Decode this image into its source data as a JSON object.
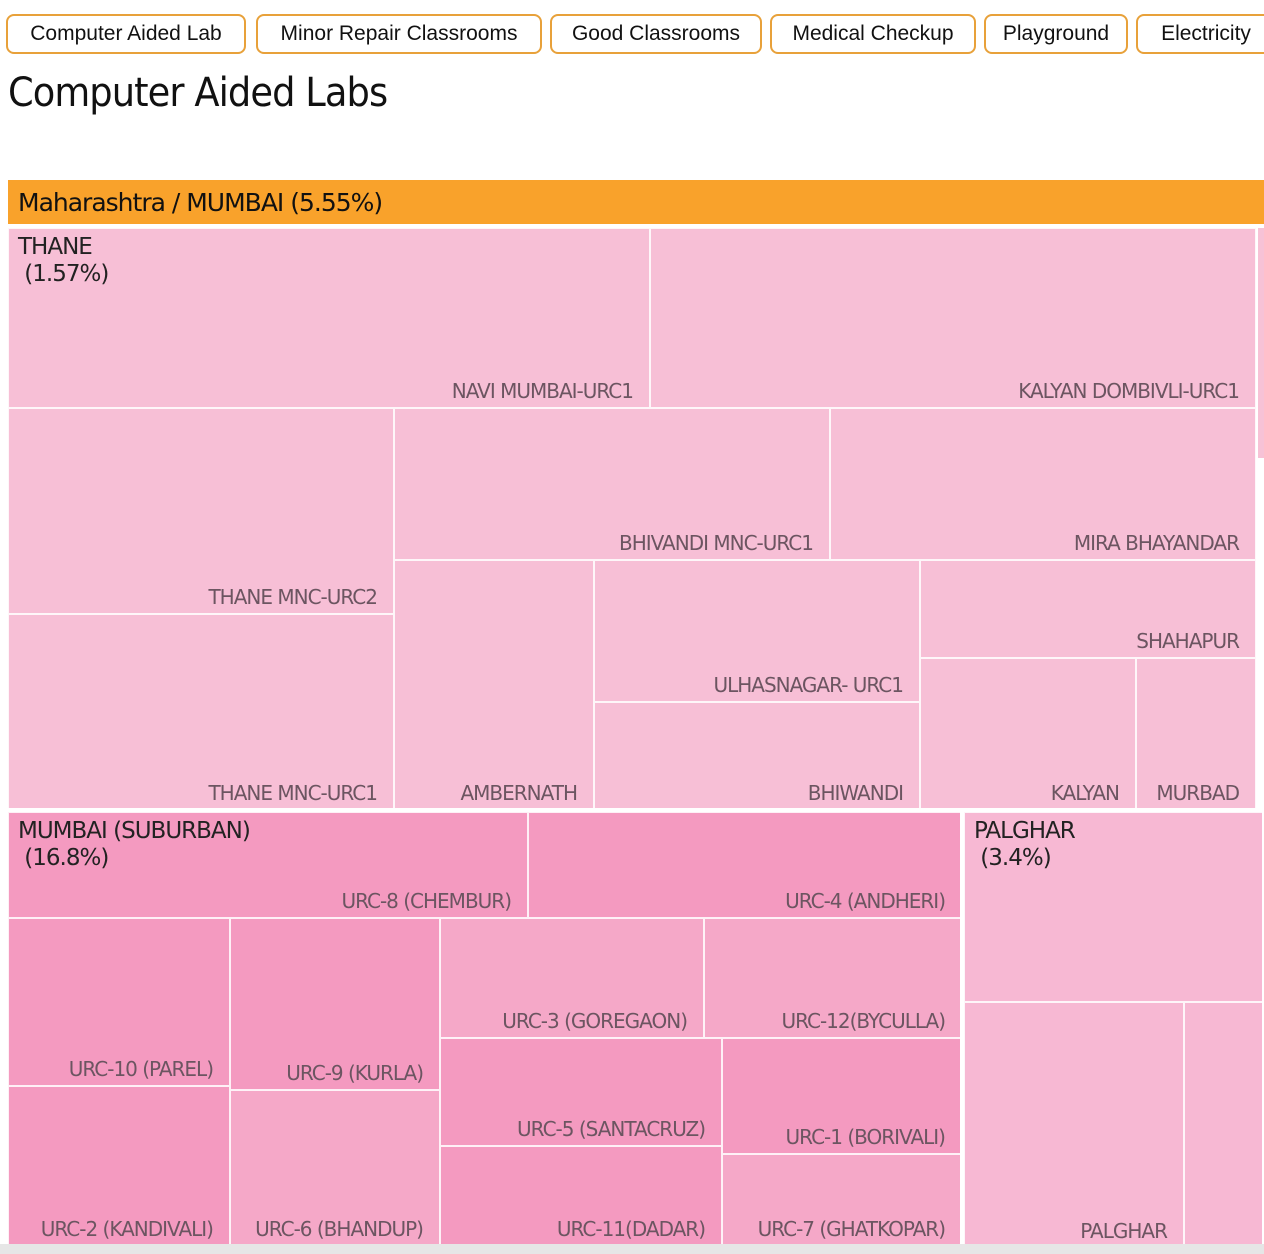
{
  "tabs": [
    {
      "label": "Computer Aided Lab"
    },
    {
      "label": "Minor Repair Classrooms"
    },
    {
      "label": "Good Classrooms"
    },
    {
      "label": "Medical Checkup"
    },
    {
      "label": "Playground"
    },
    {
      "label": "Electricity"
    }
  ],
  "page_title": "Computer Aided Labs",
  "colors": {
    "tab_border": "#e8a13a",
    "header_bar": "#f9a22b",
    "thane_cells": "#f7bfd6",
    "mumbai_suburban_cells": "#f49ac0",
    "palghar_cells": "#f7b8d3"
  },
  "chart_data": {
    "type": "treemap",
    "breadcrumb": "Maharashtra / MUMBAI (5.55%)",
    "groups": [
      {
        "name": "THANE",
        "label": "THANE\n (1.57%)",
        "percent": 1.57,
        "children": [
          "NAVI MUMBAI-URC1",
          "KALYAN DOMBIVLI-URC1",
          "THANE MNC-URC2",
          "BHIVANDI MNC-URC1",
          "MIRA BHAYANDAR",
          "THANE MNC-URC1",
          "AMBERNATH",
          "ULHASNAGAR- URC1",
          "SHAHAPUR",
          "BHIWANDI",
          "KALYAN",
          "MURBAD"
        ]
      },
      {
        "name": "MUMBAI (SUBURBAN)",
        "label": "MUMBAI (SUBURBAN)\n (16.8%)",
        "percent": 16.8,
        "children": [
          "URC-8 (CHEMBUR)",
          "URC-4 (ANDHERI)",
          "URC-10 (PAREL)",
          "URC-9 (KURLA)",
          "URC-3 (GOREGAON)",
          "URC-12(BYCULLA)",
          "URC-5 (SANTACRUZ)",
          "URC-1 (BORIVALI)",
          "URC-2 (KANDIVALI)",
          "URC-6 (BHANDUP)",
          "URC-11(DADAR)",
          "URC-7 (GHATKOPAR)"
        ]
      },
      {
        "name": "PALGHAR",
        "label": "PALGHAR\n (3.4%)",
        "percent": 3.4,
        "children": [
          "PALGHAR"
        ]
      }
    ]
  }
}
